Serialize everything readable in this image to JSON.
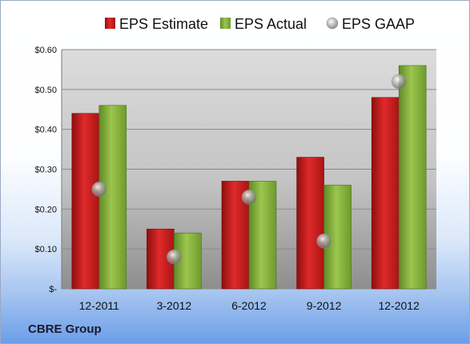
{
  "company": "CBRE Group",
  "chart_data": {
    "type": "bar",
    "categories": [
      "12-2011",
      "3-2012",
      "6-2012",
      "9-2012",
      "12-2012"
    ],
    "series": [
      {
        "name": "EPS Estimate",
        "kind": "bar",
        "color": "#d42020",
        "values": [
          0.44,
          0.15,
          0.27,
          0.33,
          0.48
        ]
      },
      {
        "name": "EPS Actual",
        "kind": "bar",
        "color": "#8fbb44",
        "values": [
          0.46,
          0.14,
          0.27,
          0.26,
          0.56
        ]
      },
      {
        "name": "EPS GAAP",
        "kind": "scatter",
        "color": "#a8a8a8",
        "values": [
          0.25,
          0.08,
          0.23,
          0.12,
          0.52
        ]
      }
    ],
    "yticks": [
      "$-",
      "$0.10",
      "$0.20",
      "$0.30",
      "$0.40",
      "$0.50",
      "$0.60"
    ],
    "ylim": [
      0,
      0.6
    ],
    "grid": true,
    "legend": "top"
  }
}
